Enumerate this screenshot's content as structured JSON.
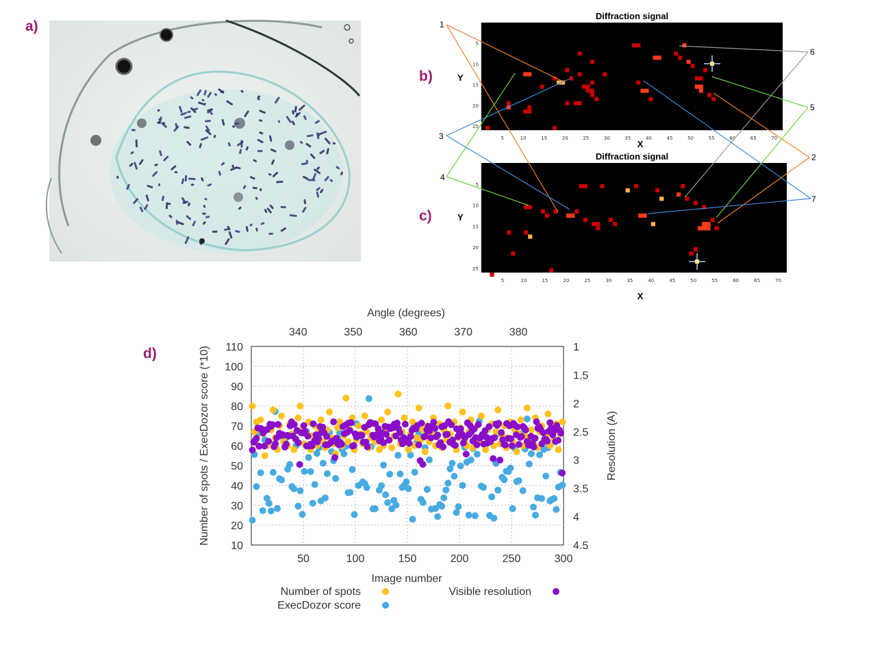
{
  "panels": {
    "a": "a)",
    "b": "b)",
    "c": "c)",
    "d": "d)"
  },
  "colors": {
    "spots": "#ffc11e",
    "execdozor": "#47abe1",
    "resolution": "#8a0fc8",
    "grid": "#b8b8b8",
    "heat_low": "#5a0000",
    "heat_mid": "#c80000",
    "heat_high": "#ff3b1a",
    "heat_peak": "#ffb347"
  },
  "microscope": {
    "description_icon": "crystal-micrograph"
  },
  "heatmap_b": {
    "title": "Diffraction signal",
    "xlabel": "X",
    "ylabel": "Y",
    "xticks": [
      5,
      10,
      15,
      20,
      25,
      30,
      35,
      40,
      45,
      50,
      55,
      60,
      65,
      70
    ],
    "yticks": [
      5,
      10,
      15,
      20,
      25
    ]
  },
  "heatmap_c": {
    "title": "Diffraction signal",
    "xlabel": "X",
    "ylabel": "Y",
    "xticks": [
      5,
      10,
      15,
      20,
      25,
      30,
      35,
      40,
      45,
      50,
      55,
      60,
      65,
      70
    ],
    "yticks": [
      5,
      10,
      15,
      20,
      25
    ]
  },
  "callouts": [
    "1",
    "2",
    "3",
    "4",
    "5",
    "6",
    "7"
  ],
  "chart_data": {
    "type": "scatter",
    "title": "",
    "x_top_label": "Angle (degrees)",
    "x_top_ticks": [
      340,
      350,
      360,
      370,
      380
    ],
    "xlabel": "Image number",
    "xticks": [
      50,
      100,
      150,
      200,
      250,
      300
    ],
    "xlim": [
      0,
      300
    ],
    "ylabel": "Number of spots / ExecDozor score (*10)",
    "yticks": [
      10,
      20,
      30,
      40,
      50,
      60,
      70,
      80,
      90,
      100,
      110
    ],
    "ylim": [
      10,
      110
    ],
    "y2label": "Resolution (A)",
    "y2ticks": [
      "1",
      "1.5",
      "2",
      "2.5",
      "3",
      "3.5",
      "4",
      "4.5"
    ],
    "y2lim": [
      1,
      4.5
    ],
    "grid": true,
    "legend": {
      "position": "bottom",
      "entries": [
        "Number of spots",
        "ExecDozor score",
        "Visible resolution"
      ]
    },
    "series": [
      {
        "name": "Number of spots",
        "color": "#ffc11e",
        "values": [
          80,
          67,
          72,
          60,
          73,
          66,
          55,
          60,
          62,
          68,
          78,
          64,
          58,
          70,
          75,
          62,
          65,
          60,
          71,
          66,
          58,
          63,
          74,
          80,
          68,
          61,
          66,
          72,
          58,
          65,
          70,
          60,
          67,
          73,
          62,
          59,
          68,
          77,
          64,
          61,
          56,
          69,
          72,
          60,
          65,
          84,
          62,
          68,
          74,
          58,
          63,
          70,
          66,
          61,
          75,
          67,
          59,
          64,
          71,
          62,
          66,
          58,
          73,
          60,
          68,
          77,
          63,
          59,
          65,
          70,
          86,
          61,
          67,
          74,
          62,
          58,
          66,
          72,
          60,
          64,
          79,
          63,
          68,
          57,
          70,
          62,
          66,
          74,
          60,
          65,
          71,
          59,
          68,
          63,
          80,
          66,
          61,
          72,
          58,
          64,
          69,
          77,
          62,
          60,
          67,
          73,
          59,
          64,
          70,
          62,
          75,
          66,
          58,
          68,
          63,
          71,
          60,
          67,
          78,
          61,
          65,
          70,
          59,
          64,
          72,
          62,
          68,
          57,
          66,
          73,
          60,
          65,
          79,
          63,
          68,
          61,
          74,
          59,
          67,
          70,
          62,
          65,
          76,
          60,
          68,
          63,
          71,
          58,
          66,
          72
        ]
      }
    ],
    "execdozor_series": {
      "name": "ExecDozor score",
      "color": "#47abe1"
    },
    "resolution_series": {
      "name": "Visible resolution",
      "color": "#8a0fc8"
    }
  }
}
